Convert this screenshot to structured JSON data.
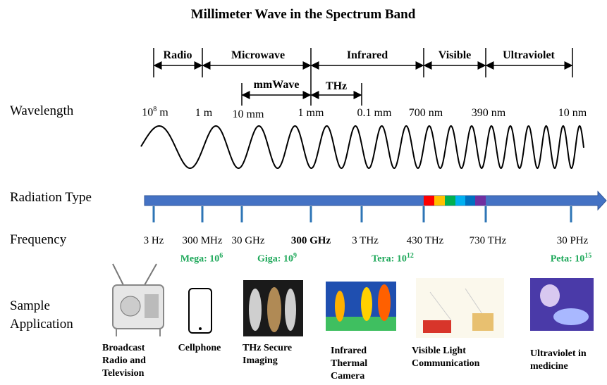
{
  "title": "Millimeter Wave in the Spectrum Band",
  "bands": [
    "Radio",
    "Microwave",
    "Infrared",
    "Visible",
    "Ultraviolet"
  ],
  "sub_bands": [
    "mmWave",
    "THz"
  ],
  "row_labels": {
    "wavelength": "Wavelength",
    "radiation_type": "Radiation Type",
    "frequency": "Frequency",
    "sample_application": "Sample Application"
  },
  "wavelengths": [
    {
      "base": "10",
      "sup": "8",
      "rest": " m"
    },
    "1 m",
    "10 mm",
    "1 mm",
    "0.1 mm",
    "700 nm",
    "390 nm",
    "10 nm"
  ],
  "frequencies": [
    "3 Hz",
    "300 MHz",
    "30 GHz",
    "300 GHz",
    "3 THz",
    "430 THz",
    "730 THz",
    "30 PHz"
  ],
  "prefixes": [
    {
      "text": "Mega: 10",
      "sup": "6"
    },
    {
      "text": "Giga: 10",
      "sup": "9"
    },
    {
      "text": "Tera: 10",
      "sup": "12"
    },
    {
      "text": "Peta: 10",
      "sup": "15"
    }
  ],
  "applications": [
    "Broadcast Radio and Television",
    "Cellphone",
    "THz Secure Imaging",
    "Infrared Thermal Camera",
    "Visible Light Communication",
    "Ultraviolet in medicine"
  ]
}
